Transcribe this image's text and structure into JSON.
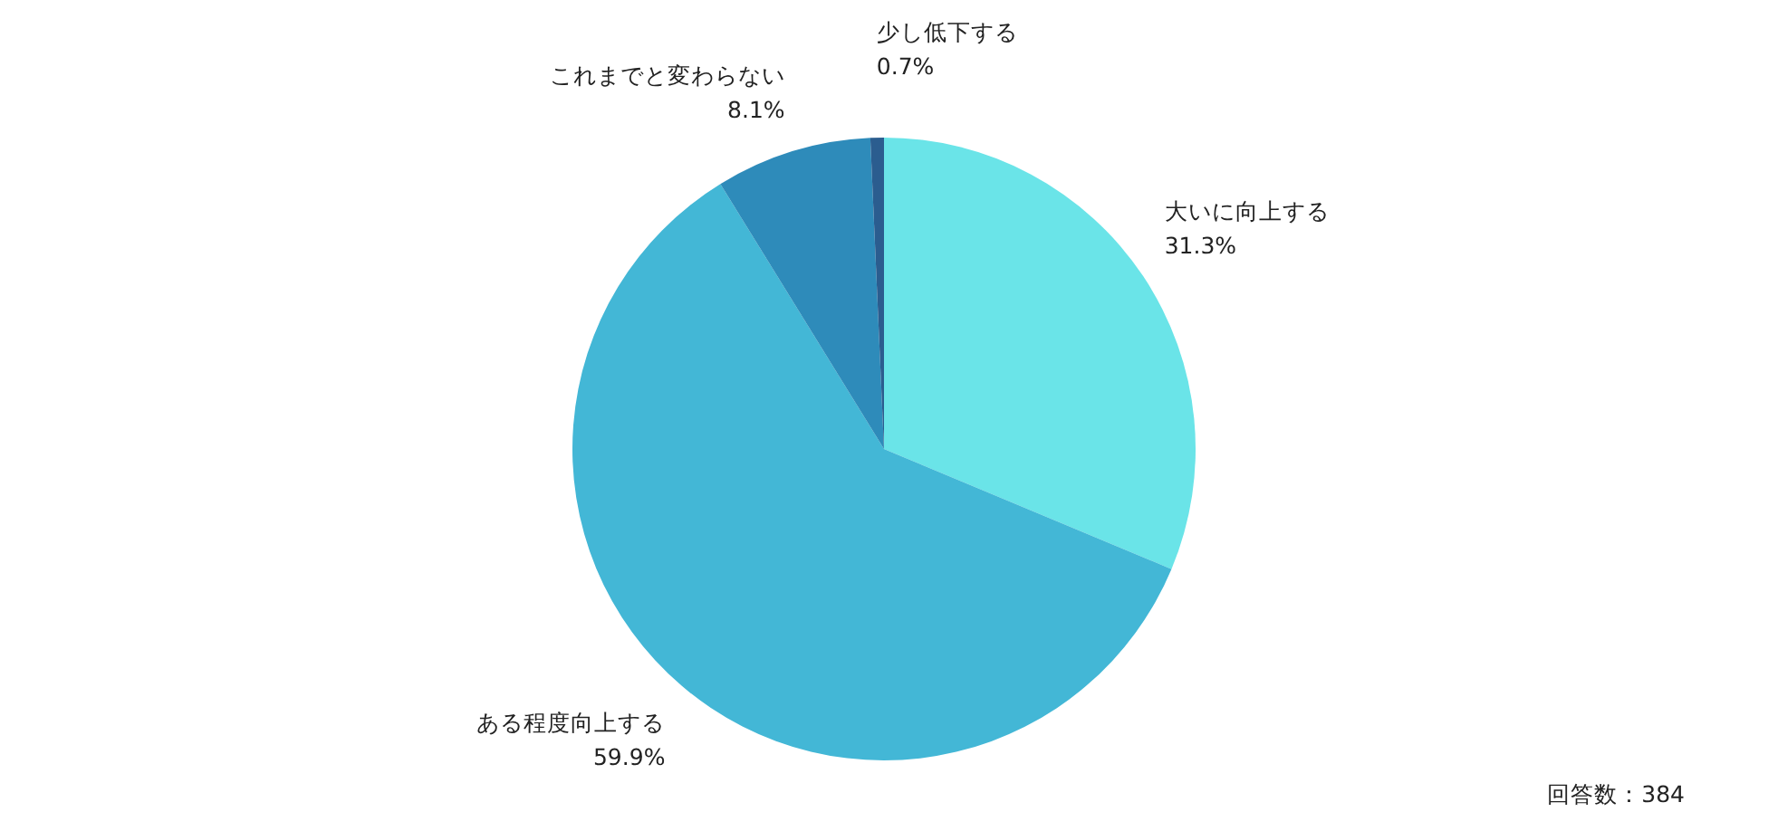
{
  "chart_data": {
    "type": "pie",
    "categories": [
      "大いに向上する",
      "ある程度向上する",
      "これまでと変わらない",
      "少し低下する"
    ],
    "values": [
      31.3,
      59.9,
      8.1,
      0.7
    ],
    "colors": [
      "#6ae4e8",
      "#43b7d6",
      "#2e8bba",
      "#2b5d8f"
    ],
    "value_labels": [
      "31.3%",
      "59.9%",
      "8.1%",
      "0.7%"
    ],
    "annotations": [
      "回答数：384"
    ],
    "legend": false
  }
}
